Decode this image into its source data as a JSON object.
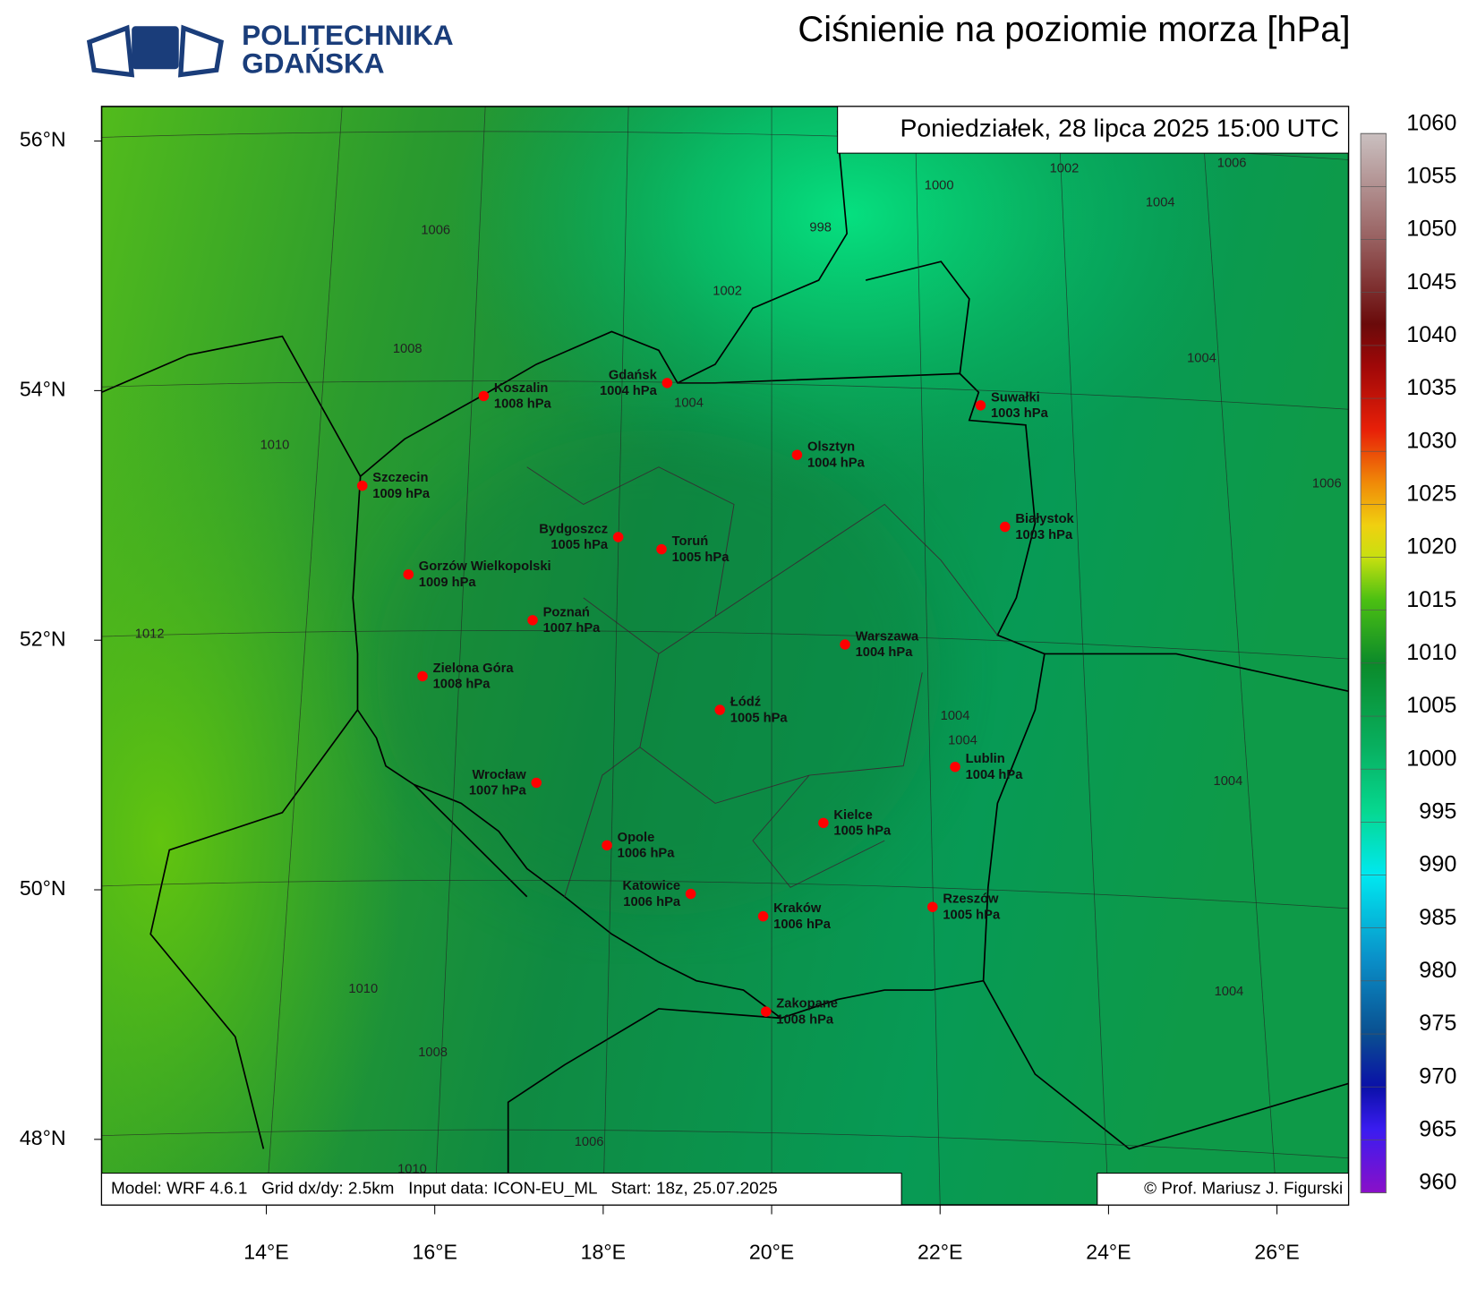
{
  "header": {
    "logo_line1": "POLITECHNIKA",
    "logo_line2": "GDAŃSKA",
    "title": "Ciśnienie na poziomie morza [hPa]"
  },
  "map": {
    "timestamp": "Poniedziałek, 28 lipca 2025 15:00 UTC",
    "lat_ticks": [
      {
        "value": 56,
        "label": "56°N"
      },
      {
        "value": 54,
        "label": "54°N"
      },
      {
        "value": 52,
        "label": "52°N"
      },
      {
        "value": 50,
        "label": "50°N"
      },
      {
        "value": 48,
        "label": "48°N"
      }
    ],
    "lon_ticks": [
      {
        "value": 14,
        "label": "14°E"
      },
      {
        "value": 16,
        "label": "16°E"
      },
      {
        "value": 18,
        "label": "18°E"
      },
      {
        "value": 20,
        "label": "20°E"
      },
      {
        "value": 22,
        "label": "22°E"
      },
      {
        "value": 24,
        "label": "24°E"
      },
      {
        "value": 26,
        "label": "26°E"
      }
    ],
    "contour_labels": [
      1006,
      998,
      1000,
      1002,
      1004,
      1006,
      1002,
      1008,
      1004,
      1004,
      1010,
      1006,
      1012,
      1004,
      1004,
      1004,
      1010,
      1004,
      1008,
      1006,
      1010
    ],
    "cities": [
      {
        "name": "Koszalin",
        "pressure": "1008 hPa"
      },
      {
        "name": "Gdańsk",
        "pressure": "1004 hPa"
      },
      {
        "name": "Suwałki",
        "pressure": "1003 hPa"
      },
      {
        "name": "Olsztyn",
        "pressure": "1004 hPa"
      },
      {
        "name": "Szczecin",
        "pressure": "1009 hPa"
      },
      {
        "name": "Białystok",
        "pressure": "1003 hPa"
      },
      {
        "name": "Bydgoszcz",
        "pressure": "1005 hPa"
      },
      {
        "name": "Toruń",
        "pressure": "1005 hPa"
      },
      {
        "name": "Gorzów Wielkopolski",
        "pressure": "1009 hPa"
      },
      {
        "name": "Poznań",
        "pressure": "1007 hPa"
      },
      {
        "name": "Warszawa",
        "pressure": "1004 hPa"
      },
      {
        "name": "Zielona Góra",
        "pressure": "1008 hPa"
      },
      {
        "name": "Łódź",
        "pressure": "1005 hPa"
      },
      {
        "name": "Lublin",
        "pressure": "1004 hPa"
      },
      {
        "name": "Wrocław",
        "pressure": "1007 hPa"
      },
      {
        "name": "Kielce",
        "pressure": "1005 hPa"
      },
      {
        "name": "Opole",
        "pressure": "1006 hPa"
      },
      {
        "name": "Katowice",
        "pressure": "1006 hPa"
      },
      {
        "name": "Kraków",
        "pressure": "1006 hPa"
      },
      {
        "name": "Rzeszów",
        "pressure": "1005 hPa"
      },
      {
        "name": "Zakopane",
        "pressure": "1008 hPa"
      }
    ],
    "footer_model": "Model: WRF 4.6.1   Grid dx/dy: 2.5km   Input data: ICON-EU_ML   Start: 18z, 25.07.2025",
    "footer_copyright": "© Prof. Mariusz J. Figurski"
  },
  "colorbar": {
    "ticks": [
      960,
      965,
      970,
      975,
      980,
      985,
      990,
      995,
      1000,
      1005,
      1010,
      1015,
      1020,
      1025,
      1030,
      1035,
      1040,
      1045,
      1050,
      1055,
      1060
    ]
  }
}
